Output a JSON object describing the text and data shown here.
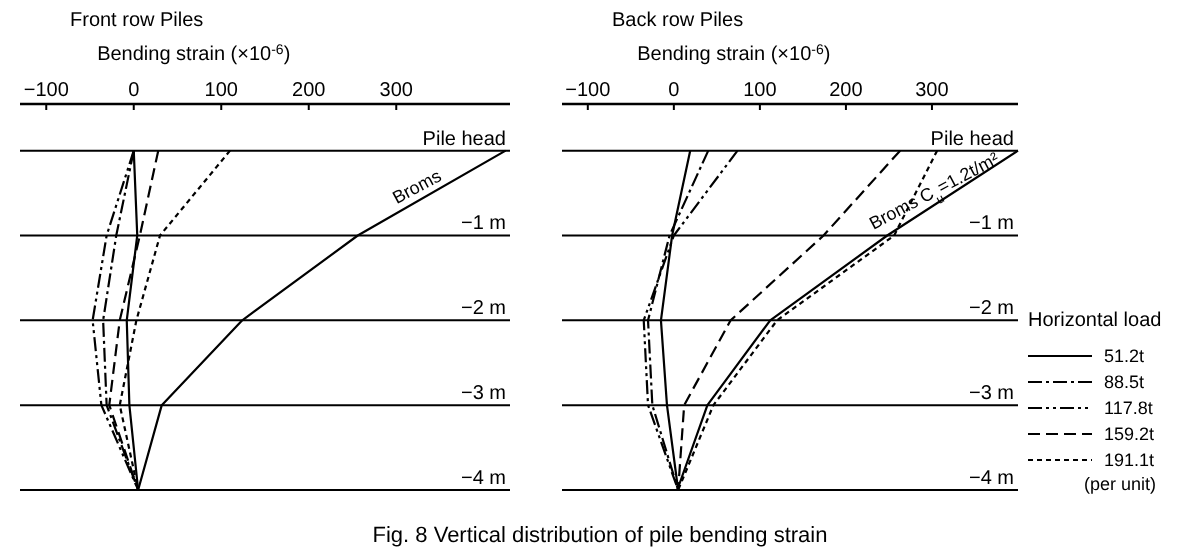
{
  "chart_data": [
    {
      "type": "line",
      "title": "Front row Piles",
      "xlabel": "Bending strain (×10$^{-6}$)",
      "xlim": [
        -130,
        430
      ],
      "xticks": [
        {
          "value": -100,
          "label": "−100"
        },
        0,
        100,
        200,
        300
      ],
      "ylim": [
        -4,
        0.55
      ],
      "yticks": [
        {
          "value": 0,
          "label": "Pile head"
        },
        {
          "value": -1,
          "label": "−1 m"
        },
        {
          "value": -2,
          "label": "−2 m"
        },
        {
          "value": -3,
          "label": "−3 m"
        },
        {
          "value": -4,
          "label": "−4 m"
        }
      ],
      "grid": "y",
      "legend": false,
      "marker": "none",
      "series": [
        {
          "color": "#000000",
          "line_style": "solid",
          "x": [
            0,
            4,
            -8,
            -5,
            5
          ],
          "values": [
            0,
            -1,
            -2,
            -3,
            -4
          ]
        },
        {
          "color": "#000000",
          "line_style": "dashdot",
          "x": [
            0,
            -20,
            -35,
            -31,
            5
          ],
          "values": [
            0,
            -1,
            -2,
            -3,
            -4
          ]
        },
        {
          "color": "#000000",
          "line_style": "dashdotdot",
          "x": [
            0,
            -31,
            -47,
            -37,
            5
          ],
          "values": [
            0,
            -1,
            -2,
            -3,
            -4
          ]
        },
        {
          "color": "#000000",
          "line_style": "dashed",
          "x": [
            28,
            7,
            -16,
            -28,
            5
          ],
          "values": [
            0,
            -1,
            -2,
            -3,
            -4
          ]
        },
        {
          "color": "#000000",
          "line_style": "dotted",
          "x": [
            110,
            30,
            3,
            -16,
            5
          ],
          "values": [
            0,
            -1,
            -2,
            -3,
            -4
          ]
        },
        {
          "color": "#000000",
          "line_style": "solid",
          "x": [
            425,
            256,
            124,
            32,
            5
          ],
          "values": [
            0,
            -1,
            -2,
            -3,
            -4
          ]
        }
      ],
      "annotations": [
        {
          "text": "Broms",
          "x": 330,
          "y": -0.55
        },
        "Fig. 8  Vertical distribution of pile bending strain"
      ]
    },
    {
      "type": "line",
      "title": "Back row Piles",
      "xlabel": "Bending strain (×10$^{-6}$)",
      "xlim": [
        -130,
        400
      ],
      "xticks": [
        {
          "value": -100,
          "label": "−100"
        },
        0,
        100,
        200,
        300
      ],
      "ylim": [
        -4,
        0.55
      ],
      "yticks": [
        {
          "value": 0,
          "label": "Pile head"
        },
        {
          "value": -1,
          "label": "−1 m"
        },
        {
          "value": -2,
          "label": "−2 m"
        },
        {
          "value": -3,
          "label": "−3 m"
        },
        {
          "value": -4,
          "label": "−4 m"
        }
      ],
      "grid": "y",
      "legend": "right",
      "legend_title": "Horizontal load",
      "marker": "none",
      "series": [
        {
          "name": "51.2t",
          "color": "#000000",
          "line_style": "solid",
          "x": [
            19,
            -2,
            -15,
            -8,
            5
          ],
          "values": [
            0,
            -1,
            -2,
            -3,
            -4
          ]
        },
        {
          "name": "88.5t",
          "color": "#000000",
          "line_style": "dashdot",
          "x": [
            40,
            -5,
            -30,
            -25,
            5
          ],
          "values": [
            0,
            -1,
            -2,
            -3,
            -4
          ]
        },
        {
          "name": "117.8t",
          "color": "#000000",
          "line_style": "dashdotdot",
          "x": [
            74,
            0,
            -35,
            -30,
            5
          ],
          "values": [
            0,
            -1,
            -2,
            -3,
            -4
          ]
        },
        {
          "name": "159.2t",
          "color": "#000000",
          "line_style": "dashed",
          "x": [
            263,
            174,
            66,
            12,
            5
          ],
          "values": [
            0,
            -1,
            -2,
            -3,
            -4
          ]
        },
        {
          "name": "191.1t",
          "color": "#000000",
          "line_style": "dotted",
          "x": [
            306,
            256,
            120,
            46,
            5
          ],
          "values": [
            0,
            -1,
            -2,
            -3,
            -4
          ]
        },
        {
          "color": "#000000",
          "line_style": "solid",
          "x": [
            400,
            248,
            112,
            39,
            4
          ],
          "values": [
            0,
            -1,
            -2,
            -3,
            -4
          ]
        }
      ],
      "annotations": [
        {
          "text": "Broms C$_{u}$=1.2t/m²",
          "x": 309,
          "y": -0.6
        },
        "(per unit)"
      ]
    }
  ]
}
